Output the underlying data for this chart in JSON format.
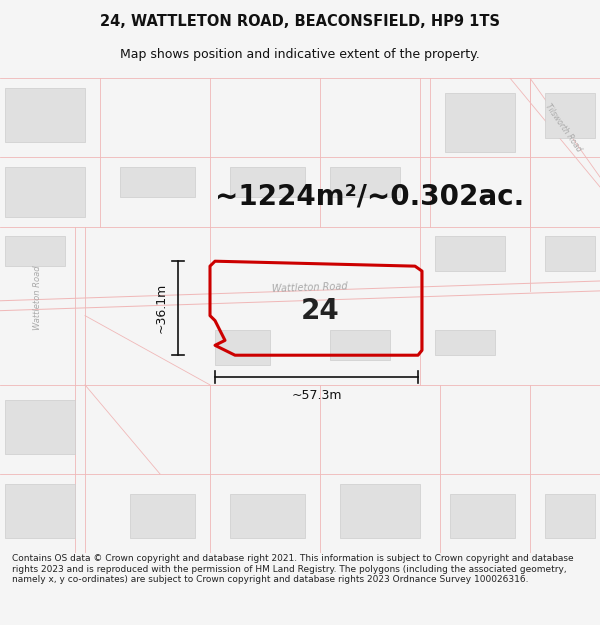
{
  "title_line1": "24, WATTLETON ROAD, BEACONSFIELD, HP9 1TS",
  "title_line2": "Map shows position and indicative extent of the property.",
  "area_text": "~1224m²/~0.302ac.",
  "property_number": "24",
  "dim_width": "~57.3m",
  "dim_height": "~36.1m",
  "road_label_h": "Wattleton Road",
  "road_label_v": "Wattleton Road",
  "road_label_diag": "Tilsworth Road",
  "footer_text": "Contains OS data © Crown copyright and database right 2021. This information is subject to Crown copyright and database rights 2023 and is reproduced with the permission of HM Land Registry. The polygons (including the associated geometry, namely x, y co-ordinates) are subject to Crown copyright and database rights 2023 Ordnance Survey 100026316.",
  "bg_color": "#f5f5f5",
  "map_bg": "#ffffff",
  "street_color": "#f0b8b8",
  "property_edge": "#cc0000",
  "building_color": "#e0e0e0",
  "building_edge": "#cccccc",
  "dim_line_color": "#111111",
  "road_label_color": "#aaaaaa",
  "title_fontsize": 10.5,
  "subtitle_fontsize": 9,
  "area_fontsize": 20,
  "number_fontsize": 20,
  "dim_fontsize": 9,
  "footer_fontsize": 6.5
}
